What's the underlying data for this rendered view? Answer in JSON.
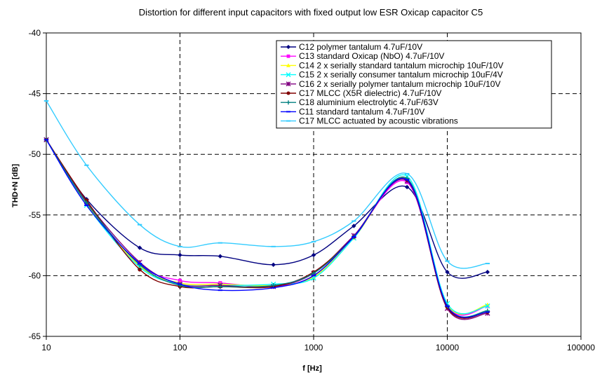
{
  "chart_data": {
    "type": "line",
    "title": "Distortion for different input capacitors with fixed output low ESR Oxicap capacitor C5",
    "xlabel": "f [Hz]",
    "ylabel": "THD+N [dB]",
    "x_scale": "log",
    "xlim": [
      10,
      100000
    ],
    "ylim": [
      -65,
      -40
    ],
    "x_ticks": [
      10,
      100,
      1000,
      10000,
      100000
    ],
    "x_tick_labels": [
      "10",
      "100",
      "1000",
      "10000",
      "100000"
    ],
    "y_ticks": [
      -40,
      -45,
      -50,
      -55,
      -60,
      -65
    ],
    "y_tick_labels": [
      "-40",
      "-45",
      "-50",
      "-55",
      "-60",
      "-65"
    ],
    "grid": true,
    "legend_position": "top-right",
    "x": [
      10,
      20,
      50,
      100,
      200,
      500,
      1000,
      2000,
      5000,
      10000,
      20000
    ],
    "series": [
      {
        "name": "C12 polymer tantalum 4.7uF/10V",
        "color": "#000080",
        "marker": "diamond",
        "values": [
          -48.8,
          -53.7,
          -57.7,
          -58.3,
          -58.4,
          -59.1,
          -58.3,
          -55.9,
          -52.7,
          -59.7,
          -59.7
        ]
      },
      {
        "name": "C13 standard Oxicap (NbO) 4.7uF/10V",
        "color": "#ff00ff",
        "marker": "square",
        "values": [
          -48.8,
          -54.0,
          -59.1,
          -60.4,
          -60.6,
          -60.9,
          -60.0,
          -56.8,
          -52.3,
          -62.5,
          -62.5
        ]
      },
      {
        "name": "C14 2 x serially standard tantalum microchip 10uF/10V",
        "color": "#ffff00",
        "marker": "triangle",
        "values": [
          -48.8,
          -54.1,
          -59.2,
          -60.6,
          -60.7,
          -60.8,
          -60.1,
          -56.9,
          -52.0,
          -62.4,
          -62.4
        ]
      },
      {
        "name": "C15 2 x serially consumer tantalum microchip 10uF/4V",
        "color": "#00ffff",
        "marker": "x",
        "values": [
          -48.8,
          -54.2,
          -59.3,
          -60.7,
          -60.8,
          -60.7,
          -60.2,
          -56.9,
          -51.8,
          -62.3,
          -62.5
        ]
      },
      {
        "name": "C16 2 x serially polymer tantalum microchip 10uF/10V",
        "color": "#800080",
        "marker": "star",
        "values": [
          -48.8,
          -53.9,
          -58.9,
          -60.7,
          -60.8,
          -60.9,
          -59.8,
          -56.7,
          -52.2,
          -62.7,
          -63.1
        ]
      },
      {
        "name": "C17 MLCC (X5R dielectric) 4.7uF/10V",
        "color": "#800000",
        "marker": "circle",
        "values": [
          -48.8,
          -53.8,
          -59.5,
          -60.9,
          -60.9,
          -60.9,
          -59.7,
          -56.8,
          -52.1,
          -62.6,
          -63.0
        ]
      },
      {
        "name": "C18 aluminium electrolytic 4.7uF/63V",
        "color": "#008080",
        "marker": "plus",
        "values": [
          -48.8,
          -54.0,
          -59.1,
          -60.8,
          -60.9,
          -60.8,
          -59.8,
          -56.8,
          -52.0,
          -62.5,
          -62.9
        ]
      },
      {
        "name": "C11 standard tantalum 4.7uF/10V",
        "color": "#0000ff",
        "marker": "dash",
        "values": [
          -48.8,
          -54.2,
          -59.0,
          -60.7,
          -61.2,
          -61.0,
          -60.0,
          -56.8,
          -52.1,
          -62.5,
          -63.0
        ]
      },
      {
        "name": "C17 MLCC actuated by acoustic vibrations",
        "color": "#33ccff",
        "marker": "dash",
        "values": [
          -45.6,
          -50.9,
          -55.8,
          -57.6,
          -57.3,
          -57.6,
          -57.2,
          -55.5,
          -51.6,
          -58.8,
          -59.0
        ]
      }
    ]
  }
}
